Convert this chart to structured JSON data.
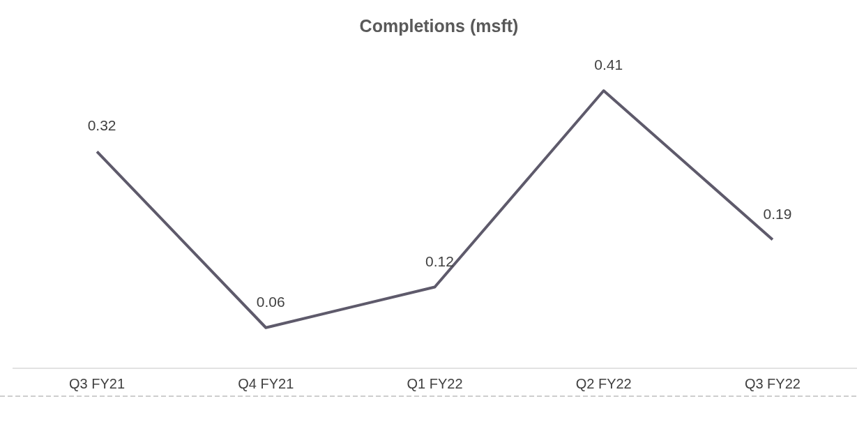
{
  "chart_data": {
    "type": "line",
    "title": "Completions (msft)",
    "categories": [
      "Q3 FY21",
      "Q4 FY21",
      "Q1 FY22",
      "Q2 FY22",
      "Q3 FY22"
    ],
    "series": [
      {
        "color": "#5e5a6b",
        "values": [
          0.32,
          0.06,
          0.12,
          0.41,
          0.19
        ]
      }
    ],
    "data_labels": true,
    "marker": "none",
    "line_style": "solid",
    "tick_labels": "x"
  }
}
